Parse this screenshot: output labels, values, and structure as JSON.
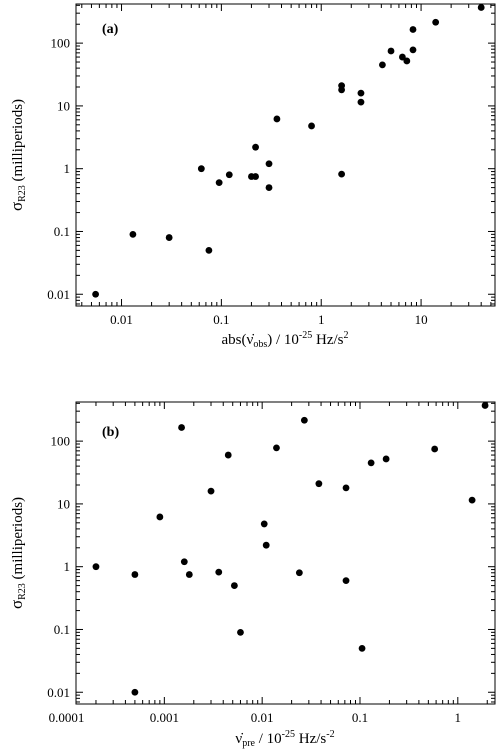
{
  "chart_data": [
    {
      "type": "scatter",
      "panel_label": "(a)",
      "xlabel_parts": [
        "abs(",
        "ν̇",
        "obs",
        ") / 10",
        "-25",
        " Hz/s",
        "2"
      ],
      "ylabel_parts": [
        "σ",
        "R23",
        " (milliperiods)"
      ],
      "x_scale": "log",
      "y_scale": "log",
      "xlim": [
        0.0035,
        55
      ],
      "ylim": [
        0.0065,
        420
      ],
      "x_ticks": [
        0.01,
        0.1,
        1,
        10
      ],
      "x_tick_labels": [
        "0.01",
        "0.1",
        "1",
        "10"
      ],
      "y_ticks": [
        0.01,
        0.1,
        1,
        10,
        100
      ],
      "y_tick_labels": [
        "0.01",
        "0.1",
        "1",
        "10",
        "100"
      ],
      "grid": false,
      "points": [
        {
          "x": 0.0055,
          "y": 0.01
        },
        {
          "x": 0.013,
          "y": 0.09
        },
        {
          "x": 0.03,
          "y": 0.08
        },
        {
          "x": 0.063,
          "y": 1.0
        },
        {
          "x": 0.075,
          "y": 0.05
        },
        {
          "x": 0.095,
          "y": 0.6
        },
        {
          "x": 0.12,
          "y": 0.8
        },
        {
          "x": 0.2,
          "y": 0.75
        },
        {
          "x": 0.22,
          "y": 0.75
        },
        {
          "x": 0.22,
          "y": 2.2
        },
        {
          "x": 0.3,
          "y": 1.2
        },
        {
          "x": 0.3,
          "y": 0.5
        },
        {
          "x": 0.36,
          "y": 6.2
        },
        {
          "x": 0.8,
          "y": 4.8
        },
        {
          "x": 1.6,
          "y": 21
        },
        {
          "x": 1.6,
          "y": 18
        },
        {
          "x": 1.6,
          "y": 0.82
        },
        {
          "x": 2.5,
          "y": 16
        },
        {
          "x": 2.5,
          "y": 11.5
        },
        {
          "x": 4.1,
          "y": 45
        },
        {
          "x": 5.0,
          "y": 75
        },
        {
          "x": 6.5,
          "y": 60
        },
        {
          "x": 7.2,
          "y": 52
        },
        {
          "x": 8.3,
          "y": 78
        },
        {
          "x": 8.3,
          "y": 165
        },
        {
          "x": 14,
          "y": 215
        },
        {
          "x": 40,
          "y": 370
        }
      ]
    },
    {
      "type": "scatter",
      "panel_label": "(b)",
      "xlabel_parts": [
        "ν̇",
        "pre",
        " / 10",
        "-25",
        " Hz/s",
        "-2"
      ],
      "ylabel_parts": [
        "σ",
        "R23",
        " (milliperiods)"
      ],
      "x_scale": "log",
      "y_scale": "log",
      "xlim": [
        0.000125,
        2.4
      ],
      "ylim": [
        0.0065,
        420
      ],
      "x_ticks": [
        0.0001,
        0.001,
        0.01,
        0.1,
        1
      ],
      "x_tick_labels": [
        "0.0001",
        "0.001",
        "0.01",
        "0.1",
        "1"
      ],
      "y_ticks": [
        0.01,
        0.1,
        1,
        10,
        100
      ],
      "y_tick_labels": [
        "0.01",
        "0.1",
        "1",
        "10",
        "100"
      ],
      "grid": false,
      "points": [
        {
          "x": 0.0002,
          "y": 1.0
        },
        {
          "x": 0.0005,
          "y": 0.75
        },
        {
          "x": 0.0005,
          "y": 0.01
        },
        {
          "x": 0.0009,
          "y": 6.2
        },
        {
          "x": 0.0015,
          "y": 165
        },
        {
          "x": 0.0016,
          "y": 1.2
        },
        {
          "x": 0.0018,
          "y": 0.75
        },
        {
          "x": 0.003,
          "y": 16
        },
        {
          "x": 0.0036,
          "y": 0.82
        },
        {
          "x": 0.0045,
          "y": 60
        },
        {
          "x": 0.0052,
          "y": 0.5
        },
        {
          "x": 0.006,
          "y": 0.09
        },
        {
          "x": 0.0105,
          "y": 4.8
        },
        {
          "x": 0.011,
          "y": 2.2
        },
        {
          "x": 0.014,
          "y": 78
        },
        {
          "x": 0.024,
          "y": 0.8
        },
        {
          "x": 0.027,
          "y": 215
        },
        {
          "x": 0.038,
          "y": 21
        },
        {
          "x": 0.072,
          "y": 18
        },
        {
          "x": 0.072,
          "y": 0.6
        },
        {
          "x": 0.105,
          "y": 0.05
        },
        {
          "x": 0.13,
          "y": 45
        },
        {
          "x": 0.185,
          "y": 52
        },
        {
          "x": 0.58,
          "y": 75
        },
        {
          "x": 1.4,
          "y": 11.5
        },
        {
          "x": 1.9,
          "y": 370
        }
      ]
    }
  ]
}
